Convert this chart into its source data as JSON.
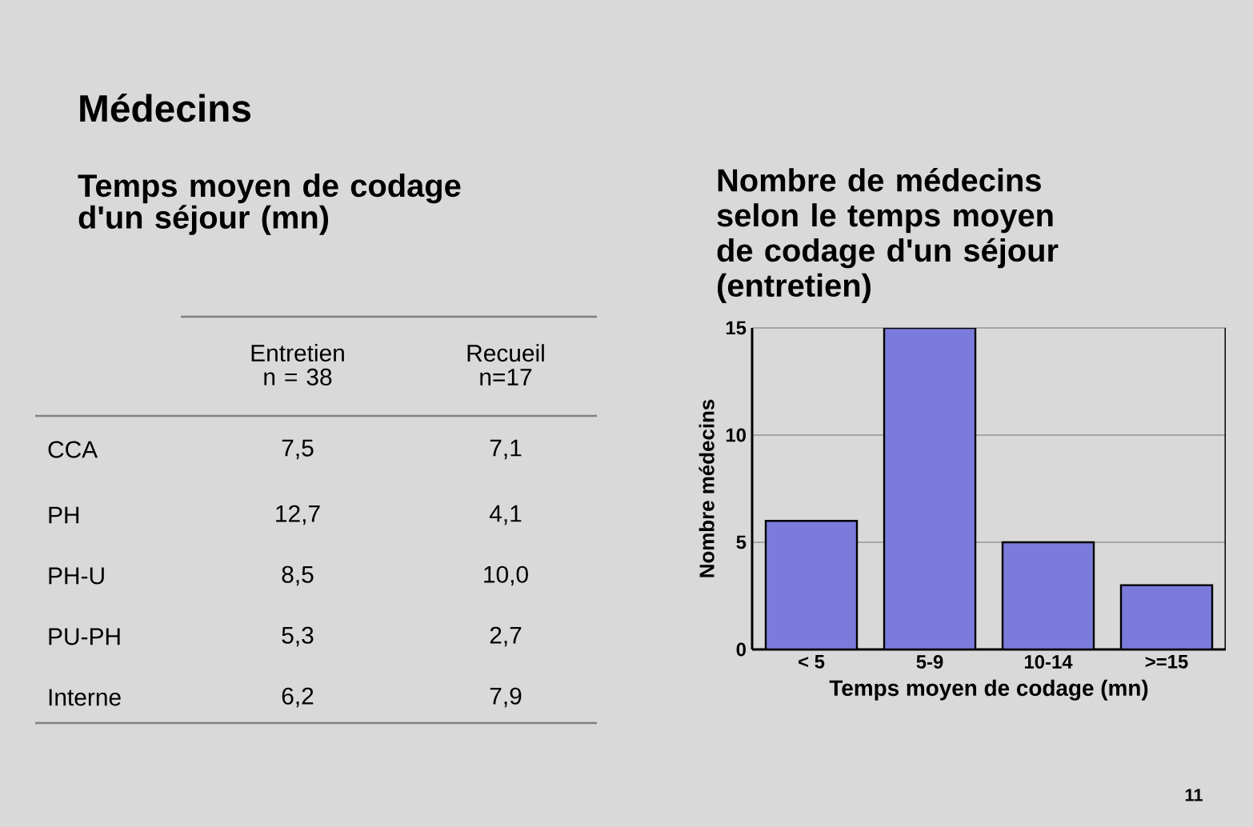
{
  "chart_data": [
    {
      "type": "other",
      "title": "Médecins",
      "subtitle": "Temps moyen de codage d'un séjour (mn)",
      "categories": [
        "CCA",
        "PH",
        "PH-U",
        "PU-PH",
        "Interne"
      ],
      "series": [
        {
          "name": "Entretien n = 38",
          "values": [
            7.5,
            12.7,
            8.5,
            5.3,
            6.2
          ],
          "value_labels": [
            "7,5",
            "12,7",
            "8,5",
            "5,3",
            "6,2"
          ]
        },
        {
          "name": "Recueil n=17",
          "values": [
            7.1,
            4.1,
            10.0,
            2.7,
            7.9
          ],
          "value_labels": [
            "7,1",
            "4,1",
            "10,0",
            "2,7",
            "7,9"
          ]
        }
      ]
    },
    {
      "type": "bar",
      "title": "Nombre de médecins selon le temps moyen de codage d'un séjour (entretien)",
      "xlabel": "Temps moyen de codage (mn)",
      "ylabel": "Nombre médecins",
      "categories": [
        "< 5",
        "5-9",
        "10-14",
        ">=15"
      ],
      "values": [
        6,
        15,
        5,
        3
      ],
      "color": "#7b7bdc",
      "ylim": [
        0,
        15
      ],
      "yticks": [
        0,
        5,
        10,
        15
      ],
      "grid": "y",
      "annotations": [
        "11"
      ]
    }
  ]
}
